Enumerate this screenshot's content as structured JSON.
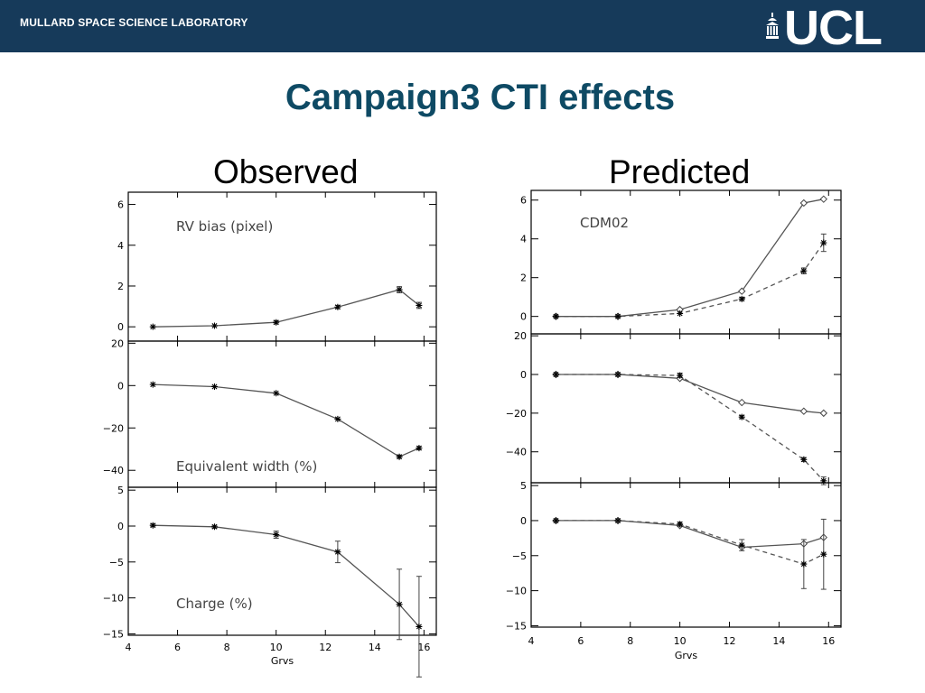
{
  "header": {
    "lab": "MULLARD SPACE SCIENCE LABORATORY",
    "logo": "UCL"
  },
  "title": "Campaign3 CTI effects",
  "columns": {
    "observed": "Observed",
    "predicted": "Predicted"
  },
  "colors": {
    "header_bg": "#163a5a",
    "title": "#0e4a64"
  },
  "chart_data": [
    {
      "type": "line",
      "title": "Observed",
      "xlabel": "Grvs",
      "xlim": [
        4,
        16.5
      ],
      "xticks": [
        4,
        6,
        8,
        10,
        12,
        14,
        16
      ],
      "panels": [
        {
          "label": "RV bias (pixel)",
          "ylim": [
            -0.7,
            6.6
          ],
          "yticks": [
            0,
            2,
            4,
            6
          ],
          "series": [
            {
              "style": "solid",
              "marker": "star",
              "x": [
                5,
                7.5,
                10,
                12.5,
                15,
                15.8
              ],
              "y": [
                0,
                0.05,
                0.22,
                0.97,
                1.82,
                1.05
              ],
              "err": [
                0.05,
                0.05,
                0.08,
                0.08,
                0.15,
                0.15
              ]
            }
          ]
        },
        {
          "label": "Equivalent width (%)",
          "ylim": [
            -48,
            21
          ],
          "yticks": [
            -40,
            -20,
            0,
            20
          ],
          "series": [
            {
              "style": "solid",
              "marker": "star",
              "x": [
                5,
                7.5,
                10,
                12.5,
                15,
                15.8
              ],
              "y": [
                0.5,
                -0.5,
                -3.6,
                -15.8,
                -33.6,
                -29.5
              ],
              "err": [
                0.4,
                0.4,
                0.5,
                0.6,
                0.8,
                0.8
              ]
            }
          ]
        },
        {
          "label": "Charge (%)",
          "ylim": [
            -15.2,
            5.4
          ],
          "yticks": [
            -15,
            -10,
            -5,
            0,
            5
          ],
          "series": [
            {
              "style": "solid",
              "marker": "star",
              "x": [
                5,
                7.5,
                10,
                12.5,
                15,
                15.8
              ],
              "y": [
                0.1,
                -0.1,
                -1.2,
                -3.6,
                -10.9,
                -14.0
              ],
              "err": [
                0.2,
                0.2,
                0.5,
                1.5,
                4.9,
                7.0
              ]
            }
          ]
        }
      ]
    },
    {
      "type": "line",
      "title": "Predicted",
      "xlabel": "Grvs",
      "xlim": [
        4,
        16.5
      ],
      "xticks": [
        4,
        6,
        8,
        10,
        12,
        14,
        16
      ],
      "panels": [
        {
          "label": "CDM02",
          "ylim": [
            -0.9,
            6.5
          ],
          "yticks": [
            0,
            2,
            4,
            6
          ],
          "series": [
            {
              "style": "solid",
              "marker": "diamond",
              "x": [
                5,
                7.5,
                10,
                12.5,
                15,
                15.8
              ],
              "y": [
                0,
                0,
                0.35,
                1.3,
                5.85,
                6.05
              ],
              "err": [
                0,
                0,
                0,
                0,
                0,
                0
              ]
            },
            {
              "style": "dashed",
              "marker": "star",
              "x": [
                5,
                7.5,
                10,
                12.5,
                15,
                15.8
              ],
              "y": [
                0,
                0,
                0.15,
                0.9,
                2.35,
                3.8
              ],
              "err": [
                0.05,
                0.05,
                0.05,
                0.08,
                0.15,
                0.45
              ]
            }
          ]
        },
        {
          "label": "",
          "ylim": [
            -56,
            21
          ],
          "yticks": [
            -40,
            -20,
            0,
            20
          ],
          "series": [
            {
              "style": "solid",
              "marker": "diamond",
              "x": [
                5,
                7.5,
                10,
                12.5,
                15,
                15.8
              ],
              "y": [
                0,
                0,
                -2,
                -14.5,
                -19,
                -20
              ],
              "err": [
                0,
                0,
                0,
                0,
                0,
                0
              ]
            },
            {
              "style": "dashed",
              "marker": "star",
              "x": [
                5,
                7.5,
                10,
                12.5,
                15,
                15.8
              ],
              "y": [
                0,
                0,
                -0.5,
                -22,
                -44,
                -55
              ],
              "err": [
                0.4,
                0.4,
                1.2,
                0.8,
                1.0,
                2.0
              ]
            }
          ]
        },
        {
          "label": "",
          "ylim": [
            -15.2,
            5.4
          ],
          "yticks": [
            -15,
            -10,
            -5,
            0,
            5
          ],
          "series": [
            {
              "style": "solid",
              "marker": "diamond",
              "x": [
                5,
                7.5,
                10,
                12.5,
                15,
                15.8
              ],
              "y": [
                0,
                0,
                -0.7,
                -3.8,
                -3.3,
                -2.4
              ],
              "err": [
                0,
                0,
                0,
                0,
                0,
                0
              ]
            },
            {
              "style": "dashed",
              "marker": "star",
              "x": [
                5,
                7.5,
                10,
                12.5,
                15,
                15.8
              ],
              "y": [
                0,
                0,
                -0.5,
                -3.5,
                -6.2,
                -4.8
              ],
              "err": [
                0.1,
                0.1,
                0.3,
                0.8,
                3.5,
                5.0
              ]
            }
          ]
        }
      ]
    }
  ]
}
